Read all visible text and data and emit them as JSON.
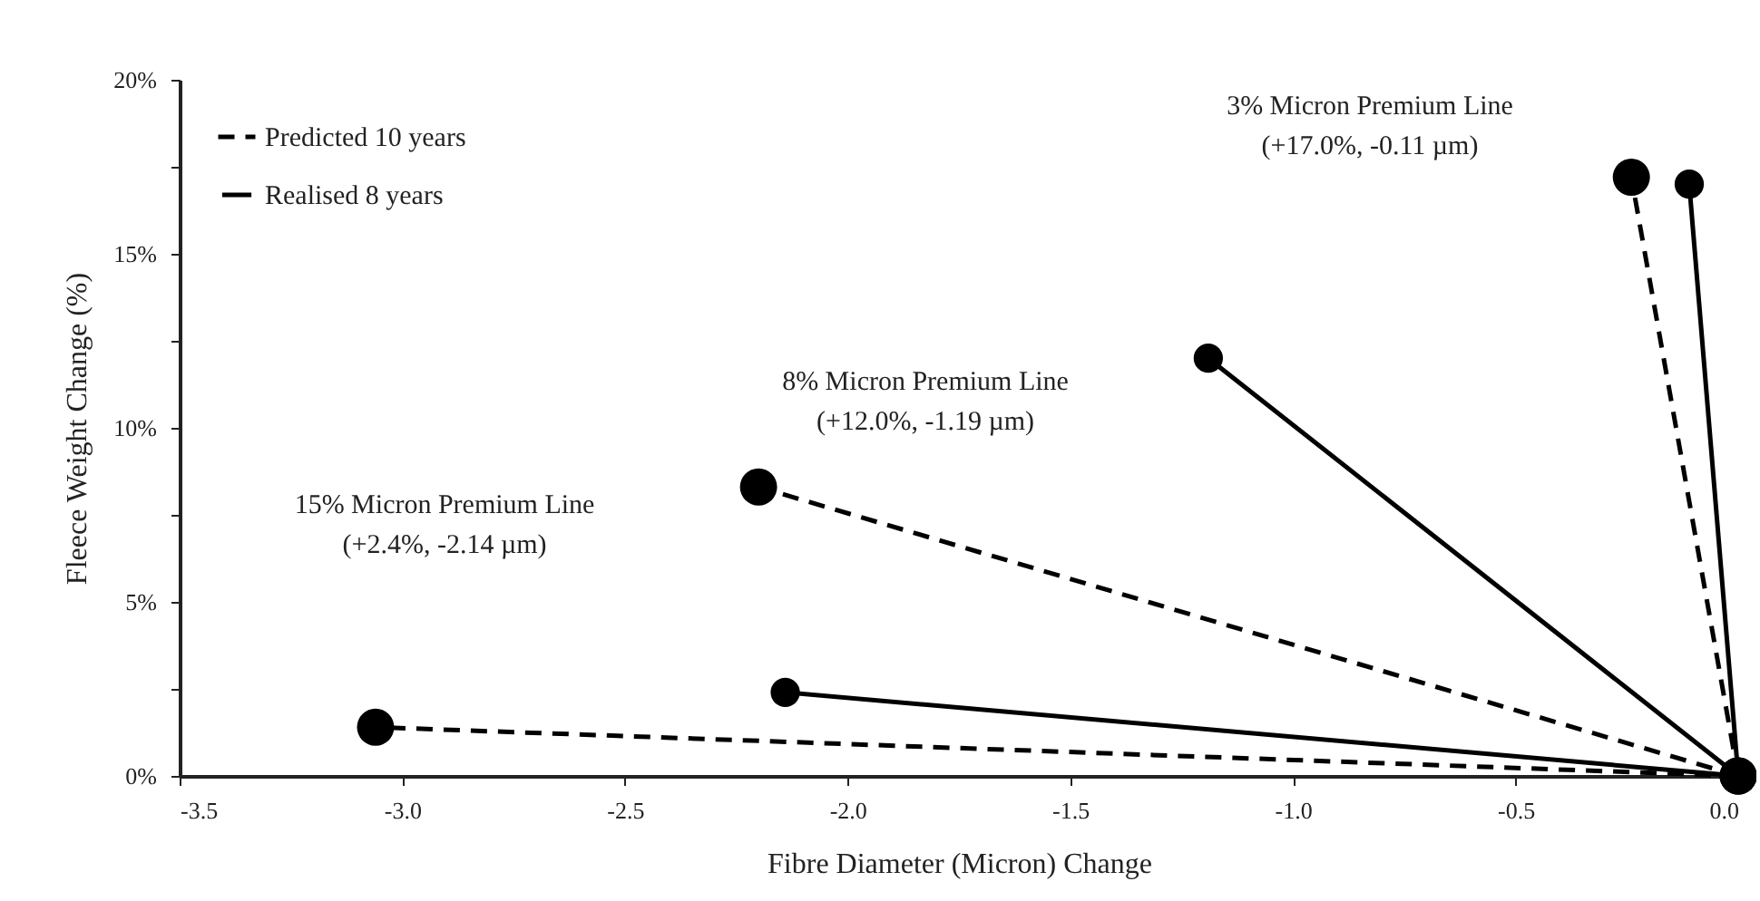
{
  "chart_data": {
    "type": "line",
    "xlabel": "Fibre Diameter (Micron) Change",
    "ylabel": "Fleece Weight Change (%)",
    "xlim": [
      -3.5,
      0
    ],
    "ylim": [
      0,
      20
    ],
    "xticks": [
      {
        "value": -3.5,
        "label": "-3.5"
      },
      {
        "value": -3,
        "label": "-3.0"
      },
      {
        "value": -2.5,
        "label": "-2.5"
      },
      {
        "value": -2,
        "label": "-2.0"
      },
      {
        "value": -1.5,
        "label": "-1.5"
      },
      {
        "value": -1,
        "label": "-1.0"
      },
      {
        "value": -0.5,
        "label": "-0.5"
      },
      {
        "value": 0,
        "label": "0.0"
      }
    ],
    "yticks": [
      {
        "value": 0,
        "label": "0%"
      },
      {
        "value": 2.5,
        "label": null
      },
      {
        "value": 5,
        "label": "5%"
      },
      {
        "value": 7.5,
        "label": null
      },
      {
        "value": 10,
        "label": "10%"
      },
      {
        "value": 12.5,
        "label": null
      },
      {
        "value": 15,
        "label": "15%"
      },
      {
        "value": 17.5,
        "label": null
      },
      {
        "value": 20,
        "label": "20%"
      }
    ],
    "marker": "circle",
    "legend": "top left",
    "grid": false,
    "series": [
      {
        "name": "Predicted 10 years",
        "color": "#000000",
        "line_style": "dashed",
        "x": [
          0,
          -3.06,
          null,
          0,
          -2.2,
          null,
          0,
          -0.24
        ],
        "values": [
          0,
          1.4,
          null,
          0,
          8.3,
          null,
          0,
          17.2
        ]
      },
      {
        "name": "Realised 8 years",
        "color": "#000000",
        "line_style": "solid",
        "x": [
          0,
          -2.14,
          null,
          0,
          -1.19,
          null,
          0,
          -0.11
        ],
        "values": [
          0,
          2.4,
          null,
          0,
          12.0,
          null,
          0,
          17.0
        ]
      }
    ],
    "annotations": [
      "3% Micron Premium Line\n(+17.0%, -0.11 µm)",
      "8% Micron Premium Line\n(+12.0%, -1.19 µm)",
      "15% Micron Premium Line\n(+2.4%, -2.14 µm)"
    ]
  }
}
